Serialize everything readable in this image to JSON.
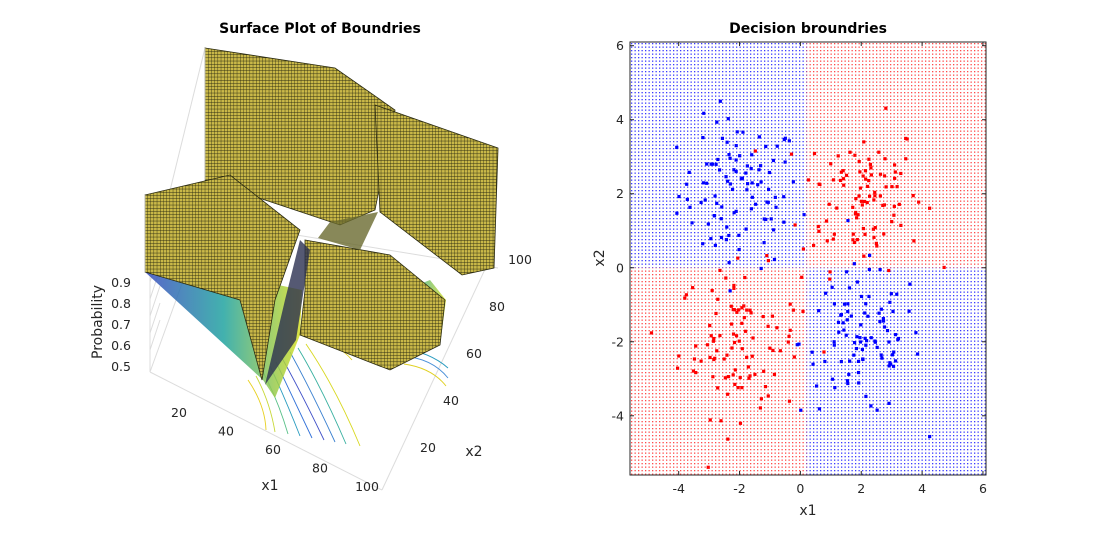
{
  "chart_data": [
    {
      "type": "surface",
      "title": "Surface Plot of Boundries",
      "xlabel": "x1",
      "ylabel": "x2",
      "zlabel": "Probability",
      "x_ticks": [
        "20",
        "40",
        "60",
        "80",
        "100"
      ],
      "y_ticks": [
        "20",
        "40",
        "60",
        "80",
        "100"
      ],
      "z_ticks": [
        "0.5",
        "0.6",
        "0.7",
        "0.8",
        "0.9"
      ],
      "xlim": [
        1,
        100
      ],
      "ylim": [
        1,
        100
      ],
      "zlim": [
        0.5,
        1.0
      ],
      "colormap": "parula",
      "surface_color": "#b8a848",
      "contour_projection": true
    },
    {
      "type": "scatter",
      "title": "Decision broundries",
      "xlabel": "x1",
      "ylabel": "x2",
      "xlim": [
        -5.6,
        6.1
      ],
      "ylim": [
        -5.6,
        6.1
      ],
      "x_ticks": [
        -4,
        -2,
        0,
        2,
        4,
        6
      ],
      "y_ticks": [
        -4,
        -2,
        0,
        2,
        4,
        6
      ],
      "x_tick_labels": [
        "-4",
        "-2",
        "0",
        "2",
        "4",
        "6"
      ],
      "y_tick_labels": [
        "-4",
        "-2",
        "0",
        "2",
        "4",
        "6"
      ],
      "boundary": {
        "x": 0.2,
        "y": 0
      },
      "region_colors": {
        "class_a": "#0000ff",
        "class_b": "#ff0000"
      },
      "regions": {
        "top_left": "class_a",
        "top_right": "class_b",
        "bottom_left": "class_b",
        "bottom_right": "class_a"
      },
      "series": [
        {
          "color": "#0000ff",
          "cluster_center": [
            -2,
            2
          ],
          "spread": 1,
          "count": 100
        },
        {
          "color": "#ff0000",
          "cluster_center": [
            2,
            2
          ],
          "spread": 1,
          "count": 100
        },
        {
          "color": "#ff0000",
          "cluster_center": [
            -2,
            -2
          ],
          "spread": 1,
          "count": 100
        },
        {
          "color": "#0000ff",
          "cluster_center": [
            2,
            -2
          ],
          "spread": 1,
          "count": 100
        }
      ]
    }
  ]
}
